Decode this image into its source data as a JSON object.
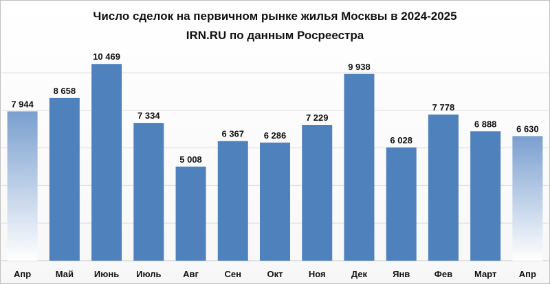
{
  "chart_data": {
    "type": "bar",
    "title": "Число сделок на первичном рынке жилья  Москвы в 2024-2025",
    "subtitle": "IRN.RU по данным Росреестра",
    "xlabel": "",
    "ylabel": "",
    "ylim": [
      0,
      11500
    ],
    "grid": true,
    "categories": [
      "Апр",
      "Май",
      "Июнь",
      "Июль",
      "Авг",
      "Сен",
      "Окт",
      "Ноя",
      "Дек",
      "Янв",
      "Фев",
      "Март",
      "Апр"
    ],
    "values": [
      7944,
      8658,
      10469,
      7334,
      5008,
      6367,
      6286,
      7229,
      9938,
      6028,
      7778,
      6888,
      6630
    ],
    "value_labels": [
      "7 944",
      "8 658",
      "10 469",
      "7 334",
      "5 008",
      "6 367",
      "6 286",
      "7 229",
      "9 938",
      "6 028",
      "7 778",
      "6 888",
      "6 630"
    ],
    "bar_color": "#4f81bd",
    "faded_edge_bars": true
  }
}
